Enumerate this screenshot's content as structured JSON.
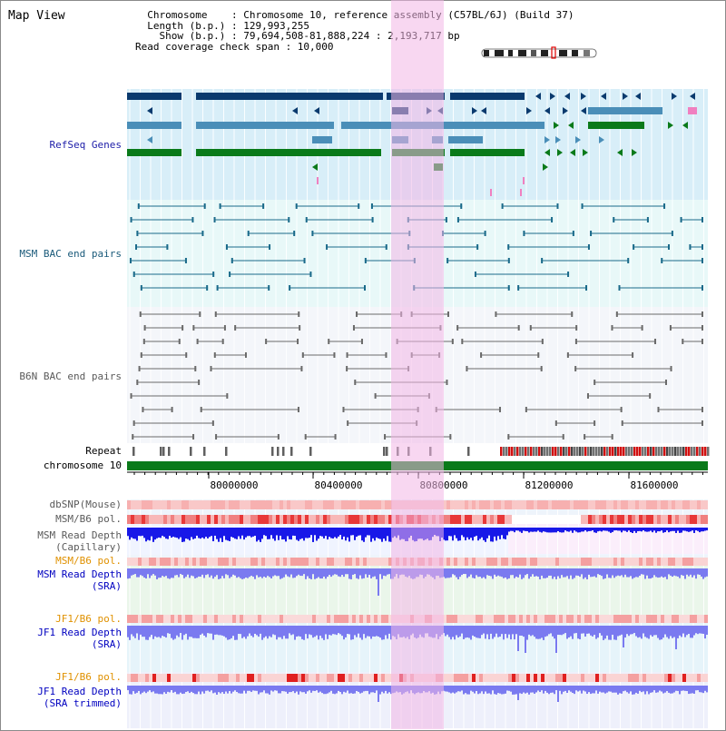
{
  "header": {
    "title": "Map View",
    "info_lines": [
      "  Chromosome    : Chromosome 10, reference assembly (C57BL/6J) (Build 37)",
      "  Length (b.p.) : 129,993,255",
      "    Show (b.p.) : 79,694,508-81,888,224 : 2,193,717 bp",
      "Read coverage check span : 10,000"
    ]
  },
  "tracks": {
    "refseq_label": "RefSeq Genes",
    "msm_bac_label": "MSM BAC end pairs",
    "b6n_bac_label": "B6N BAC end pairs",
    "repeat_label": "Repeat",
    "chromosome_label": "chromosome 10",
    "dbsnp_label": "dbSNP(Mouse)",
    "msm_b6_pol_label": "MSM/B6 pol.",
    "msm_read_depth_label": "MSM Read Depth",
    "capillary_suffix": "(Capillary)",
    "sra_suffix": "(SRA)",
    "jf1_b6_pol_label": "JF1/B6 pol.",
    "jf1_read_depth_label": "JF1 Read Depth",
    "sra_trimmed_suffix": "(SRA trimmed)"
  },
  "axis": {
    "ticks": [
      "80000000",
      "80400000",
      "80800000",
      "81200000",
      "81600000"
    ]
  },
  "colors": {
    "refseq_navy": "#0a3a6e",
    "refseq_steel": "#4a8eb8",
    "refseq_green": "#0a7a1a",
    "bac_teal": "#1a6a8a",
    "bac_gray": "#6a6a6a",
    "highlight": "#f3b6e6",
    "depth_blue": "#1818e8",
    "depth_lightblue": "#7a7af0"
  }
}
